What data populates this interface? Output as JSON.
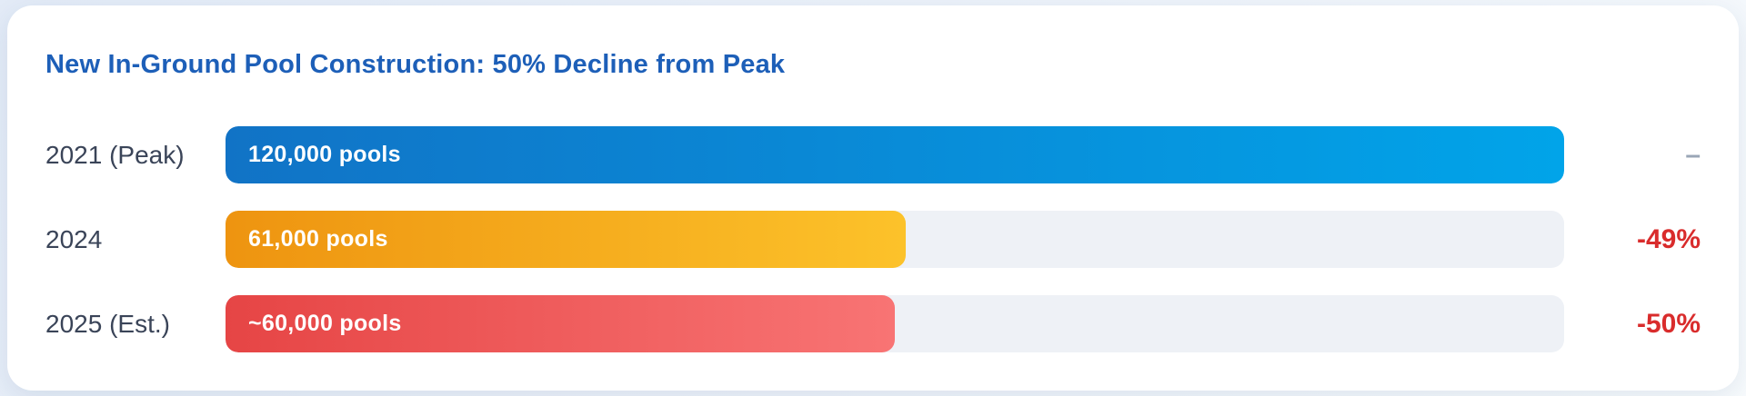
{
  "title": "New In-Ground Pool Construction: 50% Decline from Peak",
  "colors": {
    "title_blue": "#1d5fb8",
    "label_slate": "#3a4458",
    "track_gray": "#eef1f6",
    "negative_red": "#d92c2c",
    "neutral_gray": "#9aa6b6",
    "card_white": "#ffffff",
    "page_background": "#e9eef7"
  },
  "chart_data": {
    "type": "bar",
    "orientation": "horizontal",
    "title": "New In-Ground Pool Construction: 50% Decline from Peak",
    "xlabel": "",
    "ylabel": "",
    "max_value": 120000,
    "grid": false,
    "legend": false,
    "categories": [
      "2021 (Peak)",
      "2024",
      "2025 (Est.)"
    ],
    "values": [
      120000,
      61000,
      60000
    ],
    "rows": [
      {
        "label": "2021 (Peak)",
        "value": 120000,
        "bar_label": "120,000 pools",
        "change": "–",
        "change_type": "neutral",
        "gradient": [
          "#1173c6",
          "#01a4e9"
        ]
      },
      {
        "label": "2024",
        "value": 61000,
        "bar_label": "61,000 pools",
        "change": "-49%",
        "change_type": "negative",
        "gradient": [
          "#ee9410",
          "#fcc22a"
        ]
      },
      {
        "label": "2025 (Est.)",
        "value": 60000,
        "bar_label": "~60,000 pools",
        "change": "-50%",
        "change_type": "negative",
        "gradient": [
          "#e64545",
          "#f87474"
        ]
      }
    ]
  }
}
